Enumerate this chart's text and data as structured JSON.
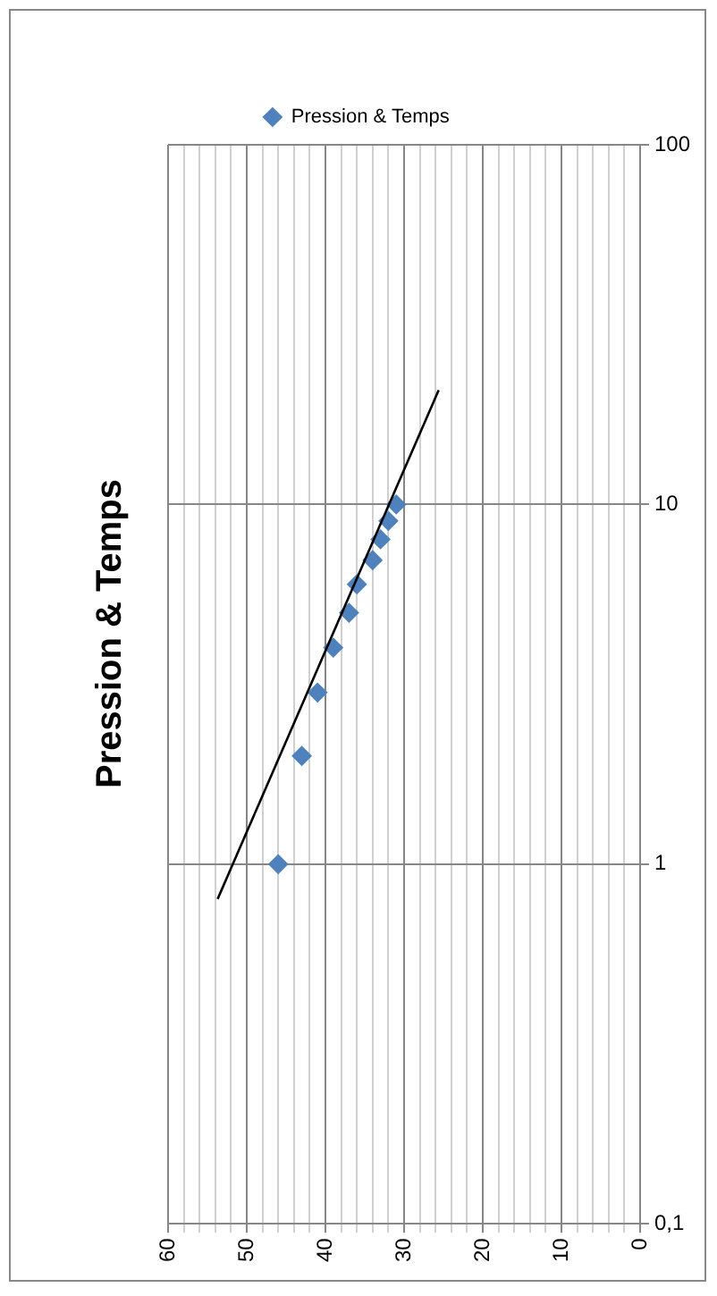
{
  "chart_data": {
    "type": "scatter",
    "title": "Pression & Temps",
    "x": [
      46,
      43,
      41,
      39,
      37,
      36,
      34,
      33,
      32,
      31
    ],
    "series": [
      {
        "name": "Pression & Temps",
        "color": "#4f81bd",
        "values": [
          1,
          2,
          3,
          4,
          5,
          6,
          7,
          8,
          9,
          10
        ],
        "marker": "diamond"
      },
      {
        "type": "line",
        "color": "#000000",
        "x": [
          53.7,
          25.6
        ],
        "values": [
          0.8,
          20.8
        ],
        "marker": "none"
      }
    ],
    "log": "y",
    "ylim": [
      0.1,
      100
    ],
    "yticks": [
      {
        "value": 0.1,
        "label": "0,1"
      },
      1,
      10,
      100
    ],
    "xlim": [
      60,
      0
    ],
    "xticks": [
      0,
      {
        "value": 2,
        "label": null
      },
      {
        "value": 4,
        "label": null
      },
      {
        "value": 6,
        "label": null
      },
      {
        "value": 8,
        "label": null
      },
      10,
      {
        "value": 12,
        "label": null
      },
      {
        "value": 14,
        "label": null
      },
      {
        "value": 16,
        "label": null
      },
      {
        "value": 18,
        "label": null
      },
      20,
      {
        "value": 22,
        "label": null
      },
      {
        "value": 24,
        "label": null
      },
      {
        "value": 26,
        "label": null
      },
      {
        "value": 28,
        "label": null
      },
      30,
      {
        "value": 32,
        "label": null
      },
      {
        "value": 34,
        "label": null
      },
      {
        "value": 36,
        "label": null
      },
      {
        "value": 38,
        "label": null
      },
      40,
      {
        "value": 42,
        "label": null
      },
      {
        "value": 44,
        "label": null
      },
      {
        "value": 46,
        "label": null
      },
      {
        "value": 48,
        "label": null
      },
      50,
      {
        "value": 52,
        "label": null
      },
      {
        "value": 54,
        "label": null
      },
      {
        "value": 56,
        "label": null
      },
      {
        "value": 58,
        "label": null
      },
      60
    ],
    "grid": true,
    "legend": "top"
  }
}
